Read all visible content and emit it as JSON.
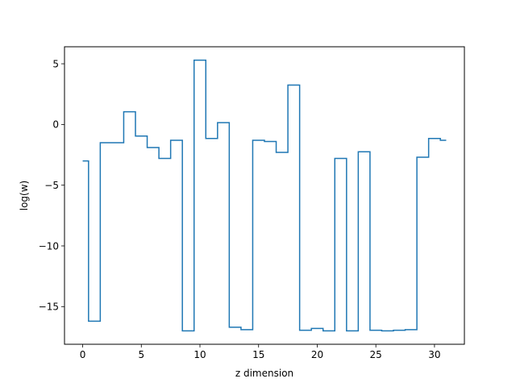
{
  "chart_data": {
    "type": "line",
    "drawstyle": "steps-mid",
    "title": "",
    "xlabel": "z dimension",
    "ylabel": "log(w)",
    "xlim": [
      -1.55,
      32.55
    ],
    "ylim": [
      -18.1,
      6.4
    ],
    "grid": false,
    "legend": "none",
    "xticks": [
      0,
      5,
      10,
      15,
      20,
      25,
      30
    ],
    "xtick_labels": [
      "0",
      "5",
      "10",
      "15",
      "20",
      "25",
      "30"
    ],
    "yticks": [
      5,
      0,
      -5,
      -10,
      -15
    ],
    "ytick_labels": [
      "5",
      "0",
      "−5",
      "−10",
      "−15"
    ],
    "series": [
      {
        "color": "#1f77b4",
        "x": [
          0,
          1,
          2,
          3,
          4,
          5,
          6,
          7,
          8,
          9,
          10,
          11,
          12,
          13,
          14,
          15,
          16,
          17,
          18,
          19,
          20,
          21,
          22,
          23,
          24,
          25,
          26,
          27,
          28,
          29,
          30,
          31
        ],
        "y": [
          -3.0,
          -16.2,
          -1.5,
          -1.5,
          1.05,
          -0.95,
          -1.9,
          -2.8,
          -1.3,
          -17.0,
          5.3,
          -1.15,
          0.15,
          -16.7,
          -16.9,
          -1.3,
          -1.4,
          -2.3,
          3.25,
          -16.95,
          -16.8,
          -17.0,
          -2.8,
          -17.0,
          -2.25,
          -16.95,
          -17.0,
          -16.95,
          -16.9,
          -2.7,
          -1.15,
          -1.3
        ]
      }
    ]
  }
}
